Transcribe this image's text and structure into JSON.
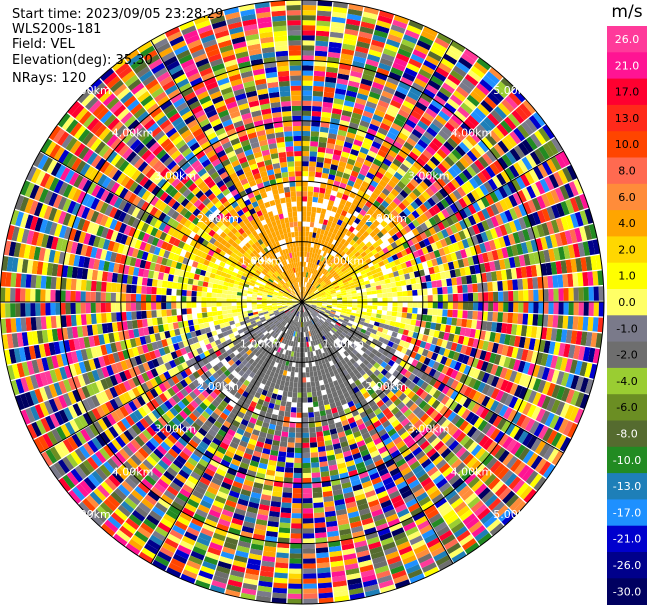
{
  "info": {
    "start_time": "Start time: 2023/09/05 23:28:29",
    "site": "WLS200s-181",
    "field": "Field: VEL",
    "elevation": "Elevation(deg): 35.30",
    "nrays": "NRays: 120"
  },
  "chart_data": {
    "type": "heatmap",
    "projection": "polar-ppi",
    "field": "VEL",
    "units": "m/s",
    "n_rays": 120,
    "ring_labels_km": [
      "1.00km",
      "2.00km",
      "3.00km",
      "4.00km",
      "5.00km"
    ],
    "ring_values_km": [
      1,
      2,
      3,
      4,
      5
    ],
    "max_range_km": 5.0,
    "colorbar": {
      "title": "m/s",
      "ticks": [
        "26.0",
        "21.0",
        "17.0",
        "13.0",
        "10.0",
        "8.0",
        "6.0",
        "4.0",
        "2.0",
        "1.0",
        "0.0",
        "-1.0",
        "-2.0",
        "-4.0",
        "-6.0",
        "-8.0",
        "-10.0",
        "-13.0",
        "-17.0",
        "-21.0",
        "-26.0",
        "-30.0"
      ],
      "colors": [
        "#ff3a9a",
        "#ff1493",
        "#ff0030",
        "#ff2a1a",
        "#ff4500",
        "#ff6a50",
        "#ff8c3a",
        "#ffa500",
        "#ffd700",
        "#ffff00",
        "#ffff66",
        "#7a7a8a",
        "#6e6e6e",
        "#9acd32",
        "#6b8e23",
        "#556b2f",
        "#228b22",
        "#1e7fb8",
        "#1e90ff",
        "#0000cd",
        "#00008b",
        "#000060"
      ]
    },
    "velocity_pattern": {
      "inner_north": "positive 1 to 4 m/s (yellow/orange)",
      "inner_south": "negative -1 to -4 m/s (olive/green)",
      "inner_west_east": "near 0 m/s (gray)",
      "outer_ranges": "noise, mixed colors"
    }
  }
}
